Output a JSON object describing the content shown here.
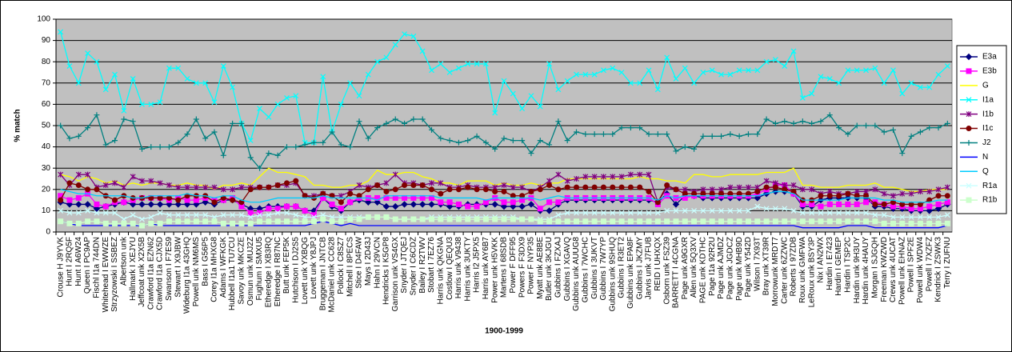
{
  "chart_data": {
    "type": "line",
    "y_label": "% match",
    "x_label": "1900-1999",
    "ylim": [
      0,
      100
    ],
    "yticks": [
      0,
      10,
      20,
      30,
      40,
      50,
      60,
      70,
      80,
      90,
      100
    ],
    "grid": true,
    "legend": "right",
    "categories": [
      "Crouse H J9YVK",
      "Hunt I 2RQ5F",
      "Hunt I A6W24",
      "Queen I PC9AP",
      "Fischl I1a 744DN",
      "Whitehead I EWWZE",
      "Strzyzowski I SSBEZ",
      "Albertson unk",
      "Hallmark I XEJYU",
      "Jeffcoat unk X2X5B",
      "Crawford I1a EZN62",
      "Crawford I1a CJX5D",
      "Swanson I F7ES9",
      "Stewart I X9JBW",
      "Wideburg I1a 43GHQ",
      "Powell unk NM6MS",
      "Bass I G56P5",
      "Corey I1a MHXG8",
      "Adams I WFKGK",
      "Hubbell I1a1 TU7CU",
      "Savoy unk MKCZE",
      "Osmun unk MUJ2Z",
      "Fughum I SMXU5",
      "Etheredge I XB3RQ",
      "Etheredge I R87NC",
      "Butt unk FEP5K",
      "Hutchison I DJ2S5",
      "Lovett unk YXBQG",
      "Lovett unk Y8JPJ",
      "Bruggeman I JNTCB",
      "McDaniel unk CC628",
      "Pollock I C8SZ7",
      "Mitchell I 8PECS",
      "Stice I D4FAW",
      "Mays I 2D43J",
      "Hahn I 29VCN",
      "Hendricks I K5GP8",
      "Garrison unk VS4GX",
      "Snyder I JTQEJ",
      "Snyder I C6CDZ",
      "Bailey I R2TWV",
      "Stobart I 7EZ76",
      "Harris unk QKGNA",
      "Costlow I QEQU3",
      "Harris unk V9438",
      "Harris unk 3UKTY",
      "Harris I2 J5PX5",
      "Harris unk AY6B7",
      "Power unk H5VKK",
      "Martens I 68SDB",
      "Power F DFF95",
      "Powers F F3DX9",
      "Power F NYP35",
      "Myatt unk AE8BE",
      "Butler unk 3KJGU",
      "Gubbins I FZXAJ",
      "Gubbins I XGAVQ",
      "Gubbins unk AUUG8",
      "Gubbins I 7WCHC",
      "Gubbins I 3UKVT",
      "Gubbins I 7W7YP",
      "Gubbins unk 9SHUQ",
      "Gubbins I R3ET2",
      "Gubbins unk EPA8F",
      "Gubbins I JKZMY",
      "Jarvis unk J7FUB",
      "REID I UHXQX",
      "Osborn unk FSZ39",
      "BARRETT I 4CGNA",
      "Page unk A9GXR",
      "Allen unk 5Q3XV",
      "PAGE unk KDTHC",
      "Page I1a 92R2U",
      "Page unk AJMDZ",
      "Page unk JGDCZ",
      "Page unk MHB9D",
      "Page unk Y542D",
      "Wilson I 7X93T",
      "Bray unk XT39R",
      "Morrowunk MRDT7",
      "Carter unk 6ZZWC",
      "Roberts I 97ZDB",
      "Roux unk GMFWA",
      "LeRoux unk BSY3P",
      "Nix I AN2WX",
      "Hardin I E7423",
      "Hardin I GEMEP",
      "Hardin I TSP2C",
      "Hardin unk 9H3UY",
      "Hardin unk 4HAUY",
      "Morgan I SJGQH",
      "Freeman KWZWD",
      "Crews unk 4UCAT",
      "Powell unk EHNAZ",
      "Powell I SPF2E",
      "Powell unk WDW4",
      "Powell I 7XZFZ",
      "Kendrick I ZSWK3",
      "Terry I ZUFNU"
    ],
    "series": [
      {
        "name": "E3a",
        "color": "#000080",
        "marker": "diamond",
        "values": [
          14,
          13,
          13,
          13,
          11,
          12,
          13,
          14,
          13,
          13,
          13,
          13,
          13,
          13,
          13,
          13,
          14,
          13,
          15,
          15,
          13,
          11,
          11,
          12,
          12,
          12,
          12,
          10,
          10,
          16,
          12,
          10,
          14,
          15,
          14,
          14,
          12,
          12,
          13,
          13,
          13,
          13,
          13,
          12,
          12,
          13,
          13,
          13,
          13,
          12,
          12,
          12,
          13,
          10,
          10,
          13,
          15,
          15,
          15,
          15,
          15,
          15,
          15,
          15,
          15,
          15,
          14,
          18,
          13,
          17,
          17,
          16,
          16,
          16,
          16,
          16,
          16,
          16,
          18,
          19,
          19,
          18,
          12,
          12,
          15,
          16,
          16,
          16,
          16,
          16,
          12,
          12,
          11,
          11,
          10,
          10,
          10,
          11,
          13
        ]
      },
      {
        "name": "E3b",
        "color": "#ff00ff",
        "marker": "square",
        "values": [
          17,
          15,
          16,
          18,
          13,
          12,
          14,
          14,
          15,
          16,
          16,
          16,
          15,
          16,
          15,
          15,
          16,
          15,
          15,
          16,
          12,
          9,
          9,
          11,
          11,
          12,
          12,
          10,
          8,
          16,
          13,
          11,
          14,
          16,
          16,
          16,
          16,
          16,
          16,
          16,
          16,
          16,
          14,
          14,
          13,
          12,
          12,
          14,
          16,
          14,
          14,
          15,
          16,
          11,
          14,
          14,
          16,
          16,
          16,
          16,
          16,
          16,
          16,
          16,
          16,
          16,
          13,
          17,
          16,
          16,
          17,
          17,
          17,
          17,
          17,
          17,
          17,
          18,
          20,
          22,
          22,
          18,
          13,
          13,
          12,
          13,
          13,
          13,
          13,
          14,
          14,
          13,
          12,
          12,
          11,
          11,
          12,
          13,
          14
        ]
      },
      {
        "name": "G",
        "color": "#ffff00",
        "marker": "none",
        "values": [
          27,
          26,
          24,
          26,
          25,
          23,
          24,
          22,
          23,
          22,
          23,
          23,
          22,
          22,
          23,
          22,
          22,
          20,
          22,
          22,
          23,
          22,
          26,
          30,
          28,
          28,
          27,
          26,
          22,
          22,
          21,
          21,
          22,
          22,
          24,
          29,
          27,
          27,
          28,
          28,
          26,
          25,
          23,
          23,
          22,
          24,
          24,
          24,
          22,
          23,
          22,
          22,
          23,
          22,
          23,
          23,
          25,
          25,
          25,
          25,
          25,
          25,
          25,
          25,
          26,
          25,
          25,
          24,
          24,
          23,
          27,
          27,
          26,
          26,
          27,
          27,
          27,
          27,
          28,
          28,
          28,
          30,
          22,
          22,
          21,
          21,
          21,
          22,
          22,
          22,
          23,
          21,
          21,
          20,
          19,
          19,
          20,
          20,
          20
        ]
      },
      {
        "name": "I1a",
        "color": "#00ffff",
        "marker": "cross",
        "values": [
          94,
          78,
          70,
          84,
          80,
          67,
          74,
          57,
          72,
          60,
          60,
          61,
          77,
          77,
          72,
          70,
          70,
          61,
          78,
          68,
          51,
          43,
          58,
          54,
          60,
          63,
          64,
          42,
          42,
          73,
          47,
          60,
          70,
          64,
          74,
          80,
          82,
          88,
          93,
          92,
          85,
          76,
          79,
          75,
          77,
          79,
          79,
          79,
          56,
          71,
          65,
          58,
          64,
          59,
          79,
          67,
          71,
          74,
          74,
          74,
          76,
          77,
          75,
          70,
          70,
          76,
          67,
          82,
          72,
          77,
          70,
          75,
          76,
          74,
          74,
          76,
          76,
          76,
          80,
          81,
          78,
          85,
          63,
          65,
          73,
          72,
          70,
          76,
          76,
          76,
          77,
          70,
          76,
          65,
          70,
          68,
          68,
          74,
          78
        ]
      },
      {
        "name": "I1b",
        "color": "#800080",
        "marker": "star",
        "values": [
          27,
          22,
          27,
          27,
          21,
          22,
          23,
          21,
          26,
          24,
          24,
          23,
          22,
          21,
          21,
          21,
          21,
          21,
          20,
          20,
          21,
          21,
          21,
          21,
          22,
          22,
          23,
          17,
          17,
          18,
          17,
          17,
          19,
          22,
          21,
          22,
          23,
          27,
          23,
          23,
          22,
          23,
          23,
          21,
          21,
          22,
          21,
          21,
          21,
          22,
          21,
          21,
          19,
          21,
          24,
          27,
          24,
          25,
          26,
          26,
          26,
          26,
          26,
          27,
          27,
          27,
          14,
          21,
          20,
          20,
          19,
          20,
          20,
          20,
          21,
          21,
          21,
          21,
          24,
          23,
          22,
          22,
          20,
          20,
          18,
          19,
          18,
          18,
          19,
          19,
          20,
          18,
          17,
          18,
          18,
          19,
          19,
          20,
          21
        ]
      },
      {
        "name": "I1c",
        "color": "#800000",
        "marker": "circle",
        "values": [
          15,
          23,
          22,
          20,
          20,
          17,
          15,
          17,
          16,
          16,
          16,
          16,
          16,
          15,
          17,
          17,
          17,
          14,
          16,
          15,
          14,
          20,
          21,
          21,
          22,
          23,
          24,
          17,
          16,
          18,
          17,
          14,
          18,
          17,
          20,
          22,
          19,
          20,
          22,
          22,
          22,
          20,
          18,
          20,
          20,
          21,
          20,
          20,
          19,
          19,
          17,
          17,
          19,
          20,
          22,
          20,
          21,
          21,
          21,
          21,
          21,
          21,
          21,
          21,
          21,
          19,
          14,
          22,
          20,
          18,
          18,
          18,
          18,
          18,
          18,
          18,
          18,
          19,
          21,
          21,
          20,
          19,
          15,
          15,
          17,
          17,
          17,
          18,
          17,
          17,
          13,
          13,
          14,
          13,
          13,
          13,
          15,
          17,
          17
        ]
      },
      {
        "name": "J2",
        "color": "#008080",
        "marker": "plus",
        "values": [
          50,
          44,
          45,
          49,
          55,
          41,
          43,
          53,
          52,
          39,
          40,
          40,
          40,
          42,
          46,
          53,
          44,
          47,
          36,
          51,
          51,
          35,
          30,
          37,
          36,
          40,
          40,
          41,
          42,
          42,
          47,
          41,
          40,
          52,
          44,
          49,
          51,
          53,
          51,
          53,
          53,
          48,
          44,
          43,
          42,
          43,
          45,
          42,
          39,
          44,
          43,
          43,
          37,
          43,
          41,
          52,
          43,
          47,
          46,
          46,
          46,
          46,
          49,
          49,
          49,
          46,
          46,
          46,
          38,
          40,
          39,
          45,
          45,
          45,
          46,
          45,
          46,
          46,
          53,
          51,
          52,
          51,
          52,
          51,
          52,
          55,
          49,
          46,
          50,
          50,
          50,
          47,
          48,
          37,
          45,
          47,
          49,
          49,
          51
        ]
      },
      {
        "name": "N",
        "color": "#0000ff",
        "marker": "none",
        "values": [
          5,
          4,
          3,
          3,
          3,
          3,
          3,
          3,
          3,
          3,
          4,
          3,
          3,
          3,
          3,
          3,
          3,
          3,
          3,
          3,
          3,
          3,
          3,
          3,
          3,
          3,
          3,
          3,
          4,
          5,
          4,
          3,
          4,
          3,
          3,
          3,
          3,
          3,
          3,
          3,
          3,
          3,
          3,
          3,
          3,
          3,
          3,
          3,
          3,
          3,
          3,
          3,
          3,
          3,
          3,
          3,
          3,
          3,
          3,
          3,
          3,
          3,
          3,
          3,
          3,
          3,
          3,
          3,
          3,
          3,
          3,
          3,
          3,
          3,
          3,
          3,
          3,
          3,
          3,
          3,
          3,
          3,
          2,
          2,
          2,
          2,
          2,
          3,
          3,
          3,
          2,
          2,
          2,
          2,
          2,
          2,
          2,
          2,
          3
        ]
      },
      {
        "name": "Q",
        "color": "#00ccff",
        "marker": "none",
        "values": [
          20,
          19,
          18,
          18,
          17,
          17,
          17,
          17,
          16,
          16,
          17,
          17,
          17,
          17,
          18,
          17,
          17,
          16,
          17,
          17,
          15,
          14,
          14,
          15,
          16,
          16,
          16,
          16,
          16,
          17,
          16,
          16,
          16,
          16,
          16,
          15,
          17,
          17,
          17,
          17,
          17,
          17,
          16,
          16,
          16,
          16,
          16,
          15,
          16,
          16,
          16,
          16,
          16,
          15,
          16,
          17,
          16,
          16,
          16,
          16,
          16,
          16,
          16,
          16,
          16,
          16,
          15,
          17,
          16,
          17,
          17,
          17,
          17,
          17,
          17,
          17,
          17,
          17,
          18,
          19,
          19,
          18,
          15,
          15,
          15,
          15,
          15,
          16,
          16,
          16,
          16,
          15,
          15,
          14,
          14,
          14,
          14,
          15,
          15
        ]
      },
      {
        "name": "R1a",
        "color": "#ccffff",
        "marker": "cross",
        "values": [
          10,
          9,
          9,
          10,
          9,
          9,
          9,
          6,
          8,
          6,
          7,
          9,
          8,
          8,
          8,
          8,
          8,
          7,
          8,
          8,
          8,
          7,
          8,
          8,
          9,
          9,
          8,
          7,
          7,
          8,
          7,
          7,
          7,
          7,
          7,
          7,
          7,
          6,
          6,
          6,
          6,
          7,
          7,
          7,
          7,
          7,
          7,
          7,
          7,
          7,
          7,
          6,
          6,
          6,
          6,
          8,
          9,
          9,
          9,
          9,
          9,
          9,
          9,
          9,
          9,
          9,
          9,
          10,
          10,
          10,
          10,
          10,
          10,
          10,
          10,
          10,
          10,
          12,
          11,
          11,
          11,
          10,
          9,
          9,
          9,
          9,
          9,
          9,
          9,
          9,
          8,
          8,
          7,
          7,
          7,
          7,
          7,
          7,
          8
        ]
      },
      {
        "name": "R1b",
        "color": "#ccffcc",
        "marker": "square",
        "values": [
          5,
          4,
          4,
          5,
          5,
          4,
          4,
          4,
          4,
          3,
          4,
          4,
          5,
          5,
          5,
          5,
          5,
          5,
          4,
          4,
          4,
          4,
          5,
          5,
          5,
          5,
          5,
          5,
          5,
          6,
          5,
          5,
          6,
          6,
          7,
          7,
          7,
          6,
          6,
          6,
          6,
          6,
          6,
          6,
          6,
          6,
          6,
          6,
          6,
          6,
          6,
          6,
          6,
          5,
          5,
          5,
          5,
          5,
          5,
          5,
          5,
          5,
          5,
          5,
          5,
          5,
          5,
          5,
          5,
          5,
          5,
          5,
          5,
          5,
          5,
          5,
          5,
          5,
          5,
          5,
          5,
          5,
          5,
          5,
          5,
          5,
          5,
          5,
          5,
          5,
          5,
          4,
          4,
          4,
          4,
          4,
          4,
          4,
          4
        ]
      }
    ]
  }
}
